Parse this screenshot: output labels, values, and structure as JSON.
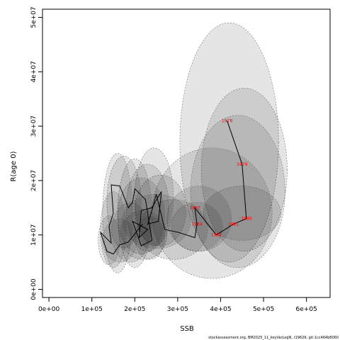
{
  "chart_data": {
    "type": "scatter",
    "title": "",
    "xlabel": "SSB",
    "ylabel": "R(age 0)",
    "xlim": [
      -15000,
      655000
    ],
    "ylim": [
      -1500000,
      51500000
    ],
    "x_ticks": [
      {
        "value": 0,
        "label": "0e+00"
      },
      {
        "value": 100000,
        "label": "1e+05"
      },
      {
        "value": 200000,
        "label": "2e+05"
      },
      {
        "value": 300000,
        "label": "3e+05"
      },
      {
        "value": 400000,
        "label": "4e+05"
      },
      {
        "value": 500000,
        "label": "5e+05"
      },
      {
        "value": 600000,
        "label": "6e+05"
      }
    ],
    "y_ticks": [
      {
        "value": 0,
        "label": "0e+00"
      },
      {
        "value": 10000000,
        "label": "1e+07"
      },
      {
        "value": 20000000,
        "label": "2e+07"
      },
      {
        "value": 30000000,
        "label": "3e+07"
      },
      {
        "value": 40000000,
        "label": "4e+07"
      },
      {
        "value": 50000000,
        "label": "5e+07"
      }
    ],
    "grid": false,
    "connected": true,
    "points": [
      {
        "label": "1978",
        "x": 415000,
        "y": 31000000
      },
      {
        "label": "1979",
        "x": 450000,
        "y": 23000000
      },
      {
        "label": "1980",
        "x": 460000,
        "y": 13000000
      },
      {
        "label": "1981",
        "x": 430000,
        "y": 12000000
      },
      {
        "label": "1982",
        "x": 390000,
        "y": 10000000
      },
      {
        "label": "1983",
        "x": 340000,
        "y": 15000000
      },
      {
        "label": "1984",
        "x": 345000,
        "y": 12000000
      },
      {
        "label": "",
        "x": 340000,
        "y": 9500000
      },
      {
        "label": "",
        "x": 300000,
        "y": 10500000
      },
      {
        "label": "",
        "x": 270000,
        "y": 11000000
      },
      {
        "label": "",
        "x": 250000,
        "y": 17500000
      },
      {
        "label": "",
        "x": 240000,
        "y": 14500000
      },
      {
        "label": "",
        "x": 230000,
        "y": 12000000
      },
      {
        "label": "",
        "x": 255000,
        "y": 12500000
      },
      {
        "label": "",
        "x": 262000,
        "y": 18000000
      },
      {
        "label": "",
        "x": 240000,
        "y": 15000000
      },
      {
        "label": "",
        "x": 215000,
        "y": 14500000
      },
      {
        "label": "",
        "x": 210000,
        "y": 9500000
      },
      {
        "label": "",
        "x": 230000,
        "y": 11000000
      },
      {
        "label": "",
        "x": 195000,
        "y": 12500000
      },
      {
        "label": "",
        "x": 215000,
        "y": 8000000
      },
      {
        "label": "",
        "x": 240000,
        "y": 9000000
      },
      {
        "label": "",
        "x": 225000,
        "y": 16500000
      },
      {
        "label": "",
        "x": 200000,
        "y": 18500000
      },
      {
        "label": "",
        "x": 195000,
        "y": 16000000
      },
      {
        "label": "",
        "x": 185000,
        "y": 15000000
      },
      {
        "label": "",
        "x": 165000,
        "y": 19000000
      },
      {
        "label": "",
        "x": 145000,
        "y": 19200000
      },
      {
        "label": "",
        "x": 150000,
        "y": 14000000
      },
      {
        "label": "",
        "x": 140000,
        "y": 11500000
      },
      {
        "label": "",
        "x": 145000,
        "y": 8500000
      },
      {
        "label": "",
        "x": 120000,
        "y": 10500000
      },
      {
        "label": "",
        "x": 135000,
        "y": 7000000
      },
      {
        "label": "",
        "x": 150000,
        "y": 6500000
      },
      {
        "label": "",
        "x": 165000,
        "y": 8200000
      },
      {
        "label": "",
        "x": 185000,
        "y": 8700000
      },
      {
        "label": "",
        "x": 218000,
        "y": 12000000
      }
    ],
    "uncertainty_ellipses": [
      {
        "cx": 420000,
        "cy": 27000000,
        "rx": 115000,
        "ry": 22000000
      },
      {
        "cx": 455000,
        "cy": 22000000,
        "rx": 100000,
        "ry": 15000000
      },
      {
        "cx": 440000,
        "cy": 18000000,
        "rx": 110000,
        "ry": 14000000
      },
      {
        "cx": 450000,
        "cy": 14000000,
        "rx": 90000,
        "ry": 5000000
      },
      {
        "cx": 380000,
        "cy": 14000000,
        "rx": 140000,
        "ry": 12000000
      },
      {
        "cx": 350000,
        "cy": 13000000,
        "rx": 75000,
        "ry": 6000000
      },
      {
        "cx": 345000,
        "cy": 11500000,
        "rx": 60000,
        "ry": 4500000
      },
      {
        "cx": 290000,
        "cy": 11000000,
        "rx": 80000,
        "ry": 5500000
      },
      {
        "cx": 260000,
        "cy": 14500000,
        "rx": 60000,
        "ry": 6500000
      },
      {
        "cx": 245000,
        "cy": 17000000,
        "rx": 45000,
        "ry": 9000000
      },
      {
        "cx": 230000,
        "cy": 15000000,
        "rx": 50000,
        "ry": 8000000
      },
      {
        "cx": 215000,
        "cy": 13500000,
        "rx": 55000,
        "ry": 7000000
      },
      {
        "cx": 200000,
        "cy": 14000000,
        "rx": 40000,
        "ry": 10000000
      },
      {
        "cx": 175000,
        "cy": 16000000,
        "rx": 40000,
        "ry": 8500000
      },
      {
        "cx": 160000,
        "cy": 14000000,
        "rx": 35000,
        "ry": 11000000
      },
      {
        "cx": 150000,
        "cy": 11000000,
        "rx": 30000,
        "ry": 7000000
      },
      {
        "cx": 140000,
        "cy": 9000000,
        "rx": 25000,
        "ry": 4500000
      },
      {
        "cx": 220000,
        "cy": 10000000,
        "rx": 55000,
        "ry": 4500000
      },
      {
        "cx": 190000,
        "cy": 10500000,
        "rx": 45000,
        "ry": 5500000
      },
      {
        "cx": 235000,
        "cy": 9500000,
        "rx": 35000,
        "ry": 4000000
      },
      {
        "cx": 165000,
        "cy": 9000000,
        "rx": 40000,
        "ry": 4000000
      },
      {
        "cx": 250000,
        "cy": 12500000,
        "rx": 80000,
        "ry": 5000000
      }
    ]
  },
  "footer": {
    "text": "stockassessment.org, BM2025_11_keyVarLogN, r19629, git:1cc464b8060"
  }
}
